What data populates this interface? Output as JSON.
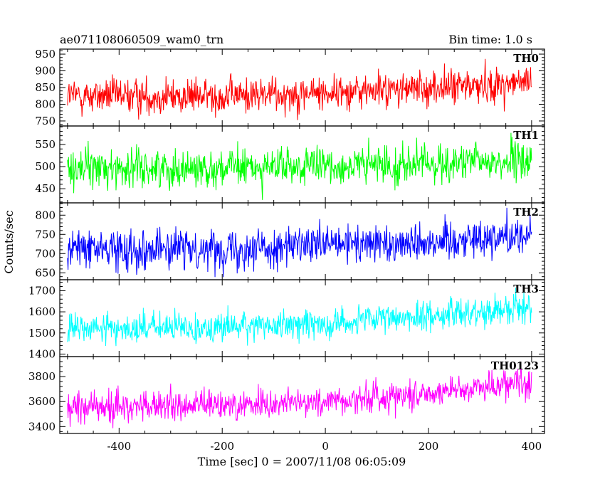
{
  "header": {
    "title": "ae071108060509_wam0_trn",
    "bin_time": "Bin time: 1.0 s"
  },
  "chart_data": {
    "type": "line",
    "title": "ae071108060509_wam0_trn",
    "subtitle": "Bin time: 1.0 s",
    "xlabel": "Time [sec] 0 = 2007/11/08 06:05:09",
    "ylabel": "Counts/sec",
    "xlim": [
      -515,
      425
    ],
    "x_range": [
      -500,
      400
    ],
    "bin_time_s": 1.0,
    "x_ticks": [
      -400,
      -200,
      0,
      200,
      400
    ],
    "grid": false,
    "panels": [
      {
        "name": "TH0",
        "color": "#ff0000",
        "ylim": [
          735,
          965
        ],
        "y_ticks": [
          750,
          800,
          850,
          900,
          950
        ],
        "trend": [
          {
            "x": -500,
            "y": 825
          },
          {
            "x": -250,
            "y": 823
          },
          {
            "x": 0,
            "y": 835
          },
          {
            "x": 200,
            "y": 848
          },
          {
            "x": 400,
            "y": 865
          }
        ],
        "noise": 27
      },
      {
        "name": "TH1",
        "color": "#00ff00",
        "ylim": [
          418,
          592
        ],
        "y_ticks": [
          450,
          500,
          550
        ],
        "trend": [
          {
            "x": -500,
            "y": 498
          },
          {
            "x": -250,
            "y": 496
          },
          {
            "x": 0,
            "y": 500
          },
          {
            "x": 200,
            "y": 506
          },
          {
            "x": 400,
            "y": 513
          }
        ],
        "noise": 22
      },
      {
        "name": "TH2",
        "color": "#0000ff",
        "ylim": [
          632,
          832
        ],
        "y_ticks": [
          650,
          700,
          750,
          800
        ],
        "trend": [
          {
            "x": -500,
            "y": 713
          },
          {
            "x": -250,
            "y": 712
          },
          {
            "x": 0,
            "y": 720
          },
          {
            "x": 200,
            "y": 732
          },
          {
            "x": 400,
            "y": 750
          }
        ],
        "noise": 26
      },
      {
        "name": "TH3",
        "color": "#00ffff",
        "ylim": [
          1388,
          1752
        ],
        "y_ticks": [
          1400,
          1500,
          1600,
          1700
        ],
        "trend": [
          {
            "x": -500,
            "y": 1520
          },
          {
            "x": -250,
            "y": 1525
          },
          {
            "x": 0,
            "y": 1545
          },
          {
            "x": 200,
            "y": 1580
          },
          {
            "x": 400,
            "y": 1625
          }
        ],
        "noise": 36
      },
      {
        "name": "TH0123",
        "color": "#ff00ff",
        "ylim": [
          3345,
          3960
        ],
        "y_ticks": [
          3400,
          3600,
          3800
        ],
        "trend": [
          {
            "x": -500,
            "y": 3555
          },
          {
            "x": -250,
            "y": 3565
          },
          {
            "x": 0,
            "y": 3600
          },
          {
            "x": 200,
            "y": 3670
          },
          {
            "x": 400,
            "y": 3770
          }
        ],
        "noise": 62
      }
    ]
  }
}
